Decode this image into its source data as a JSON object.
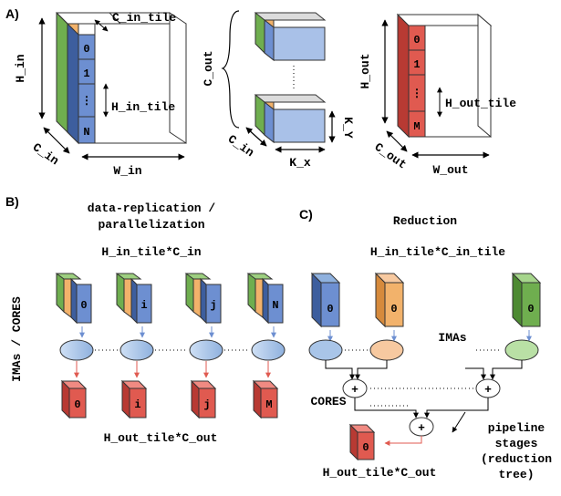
{
  "panel_a": {
    "label": "A)",
    "input": {
      "h": "H_in",
      "c": "C_in",
      "w": "W_in",
      "c_tile": "C_in_tile",
      "h_tile": "H_in_tile",
      "tiles": [
        "0",
        "1",
        "⋮",
        "N"
      ]
    },
    "weights": {
      "c_out": "C_out",
      "c_in": "C_in",
      "k_x": "K_x",
      "k_y": "K_Y"
    },
    "output": {
      "h": "H_out",
      "c": "C_out",
      "w": "W_out",
      "h_tile": "H_out_tile",
      "tiles": [
        "0",
        "1",
        "⋮",
        "M"
      ]
    }
  },
  "panel_b": {
    "label": "B)",
    "title_line1": "data-replication /",
    "title_line2": "parallelization",
    "input_label": "H_in_tile*C_in",
    "side_label": "IMAs / CORES",
    "input_tiles": [
      "0",
      "i",
      "j",
      "N"
    ],
    "output_tiles": [
      "0",
      "i",
      "j",
      "M"
    ],
    "output_label": "H_out_tile*C_out"
  },
  "panel_c": {
    "label": "C)",
    "title": "Reduction",
    "input_label": "H_in_tile*C_in_tile",
    "tiles": [
      "0",
      "0",
      "0"
    ],
    "imas_label": "IMAs",
    "cores_label": "CORES",
    "plus": "+",
    "output_tile": "0",
    "output_label": "H_out_tile*C_out",
    "pipeline_line1": "pipeline",
    "pipeline_line2": "stages",
    "pipeline_line3": "(reduction",
    "pipeline_line4": "tree)"
  },
  "colors": {
    "blue": "#6d8fd1",
    "blue_dark": "#3d5e9e",
    "blue_light": "#a9c1e8",
    "green": "#6fae4f",
    "orange": "#f2b26b",
    "red": "#e05a50",
    "red_dark": "#b83a33",
    "ellipse_blue": "#a9c5e8",
    "ellipse_orange": "#f7c9a0",
    "ellipse_green": "#b9e0a5"
  }
}
